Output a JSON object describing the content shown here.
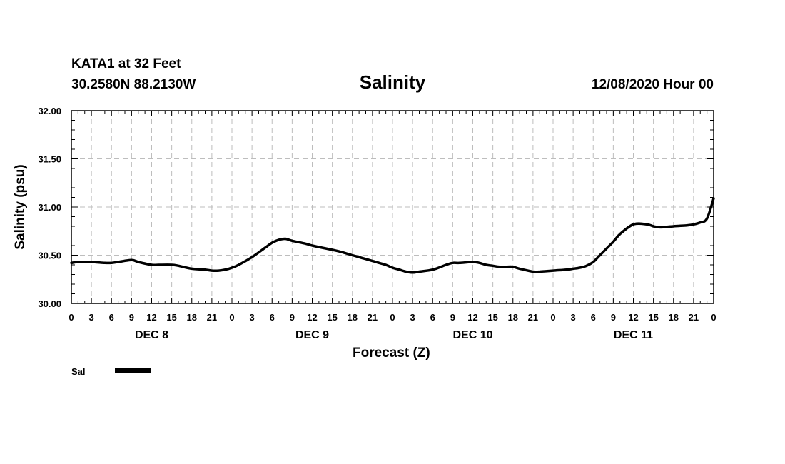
{
  "header": {
    "station": "KATA1 at 32 Feet",
    "coords": "30.2580N 88.2130W",
    "title": "Salinity",
    "datetime": "12/08/2020 Hour 00"
  },
  "legend": {
    "label": "Sal",
    "color": "#000000"
  },
  "chart_data": {
    "type": "line",
    "title": "Salinity",
    "xlabel": "Forecast (Z)",
    "ylabel": "Salinity (psu)",
    "ylim": [
      30.0,
      32.0
    ],
    "yticks": [
      "30.00",
      "30.50",
      "31.00",
      "31.50",
      "32.00"
    ],
    "xlim": [
      0,
      96
    ],
    "x_tick_labels": [
      "0",
      "3",
      "6",
      "9",
      "12",
      "15",
      "18",
      "21",
      "0",
      "3",
      "6",
      "9",
      "12",
      "15",
      "18",
      "21",
      "0",
      "3",
      "6",
      "9",
      "12",
      "15",
      "18",
      "21",
      "0",
      "3",
      "6",
      "9",
      "12",
      "15",
      "18",
      "21",
      "0"
    ],
    "day_labels": [
      {
        "label": "DEC 8",
        "hour": 12
      },
      {
        "label": "DEC 9",
        "hour": 36
      },
      {
        "label": "DEC 10",
        "hour": 60
      },
      {
        "label": "DEC 11",
        "hour": 84
      }
    ],
    "grid": true,
    "legend_position": "bottom-left",
    "series": [
      {
        "name": "Sal",
        "color": "#000000",
        "x": [
          0,
          1,
          3,
          5,
          6,
          7,
          9,
          10,
          12,
          13,
          15,
          16,
          18,
          20,
          21,
          22,
          23,
          24,
          25,
          27,
          29,
          30,
          31,
          32,
          33,
          35,
          36,
          38,
          40,
          42,
          43,
          45,
          46,
          47,
          48,
          49,
          50,
          51,
          52,
          54,
          56,
          57,
          58,
          60,
          61,
          62,
          63,
          64,
          65,
          66,
          67,
          69,
          70,
          72,
          74,
          75,
          76,
          77,
          78,
          79,
          81,
          82,
          84,
          86,
          87,
          88,
          90,
          92,
          93,
          94,
          95,
          96
        ],
        "values": [
          30.42,
          30.43,
          30.43,
          30.42,
          30.42,
          30.43,
          30.45,
          30.43,
          30.4,
          30.4,
          30.4,
          30.39,
          30.36,
          30.35,
          30.34,
          30.34,
          30.35,
          30.37,
          30.4,
          30.48,
          30.58,
          30.63,
          30.66,
          30.67,
          30.65,
          30.62,
          30.6,
          30.57,
          30.54,
          30.5,
          30.48,
          30.44,
          30.42,
          30.4,
          30.37,
          30.35,
          30.33,
          30.32,
          30.33,
          30.35,
          30.4,
          30.42,
          30.42,
          30.43,
          30.42,
          30.4,
          30.39,
          30.38,
          30.38,
          30.38,
          30.36,
          30.33,
          30.33,
          30.34,
          30.35,
          30.36,
          30.37,
          30.39,
          30.43,
          30.5,
          30.64,
          30.72,
          30.82,
          30.82,
          30.8,
          30.79,
          30.8,
          30.81,
          30.82,
          30.84,
          30.88,
          31.09
        ]
      }
    ]
  }
}
